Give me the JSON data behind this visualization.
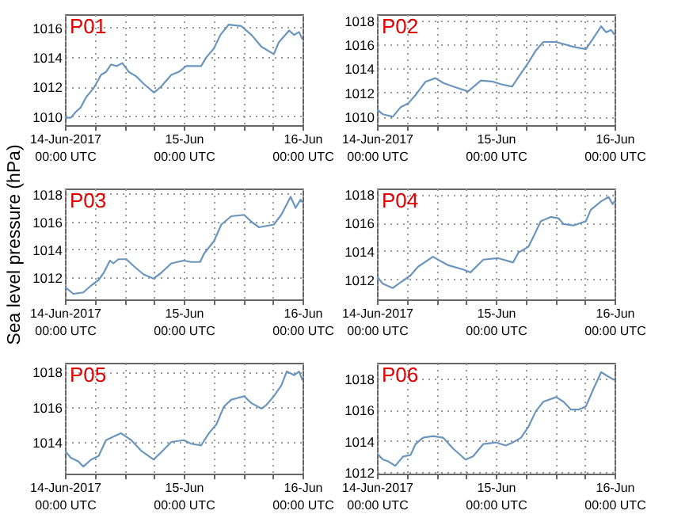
{
  "chart_data": [
    {
      "type": "line",
      "annotations": [
        "P01"
      ],
      "xlim": [
        "2017-06-14T00:00",
        "2017-06-16T00:00"
      ],
      "xticks": [
        {
          "value": "2017-06-14T00:00",
          "label": "14-Jun-2017\n00:00 UTC"
        },
        {
          "value": "2017-06-14T06:00",
          "label": null
        },
        {
          "value": "2017-06-14T12:00",
          "label": null
        },
        {
          "value": "2017-06-14T18:00",
          "label": null
        },
        {
          "value": "2017-06-15T00:00",
          "label": "15-Jun\n00:00 UTC"
        },
        {
          "value": "2017-06-15T06:00",
          "label": null
        },
        {
          "value": "2017-06-15T12:00",
          "label": null
        },
        {
          "value": "2017-06-15T18:00",
          "label": null
        },
        {
          "value": "2017-06-16T00:00",
          "label": "16-Jun\n00:00 UTC"
        }
      ],
      "ylim": [
        1009.4,
        1016.9
      ],
      "yticks": [
        1010,
        1012,
        1014,
        1016
      ],
      "grid": true,
      "x": [
        "2017-06-14T00:00",
        "2017-06-14T01:12",
        "2017-06-14T02:12",
        "2017-06-14T03:12",
        "2017-06-14T04:18",
        "2017-06-14T05:48",
        "2017-06-14T07:18",
        "2017-06-14T08:18",
        "2017-06-14T09:18",
        "2017-06-14T10:30",
        "2017-06-14T11:36",
        "2017-06-14T12:54",
        "2017-06-14T14:24",
        "2017-06-14T15:54",
        "2017-06-14T18:00",
        "2017-06-14T19:24",
        "2017-06-14T21:30",
        "2017-06-14T23:00",
        "2017-06-15T00:30",
        "2017-06-15T03:30",
        "2017-06-15T04:36",
        "2017-06-15T06:06",
        "2017-06-15T07:24",
        "2017-06-15T09:06",
        "2017-06-15T11:36",
        "2017-06-15T13:42",
        "2017-06-15T15:42",
        "2017-06-15T18:12",
        "2017-06-15T19:12",
        "2017-06-15T21:18",
        "2017-06-15T22:18",
        "2017-06-15T23:18",
        "2017-06-16T00:00"
      ],
      "series": [
        {
          "color": "#6a96be",
          "values": [
            1009.9,
            1009.9,
            1010.3,
            1010.6,
            1011.3,
            1011.9,
            1012.8,
            1013.0,
            1013.5,
            1013.4,
            1013.6,
            1013.0,
            1012.7,
            1012.2,
            1011.6,
            1012.0,
            1012.8,
            1013.0,
            1013.4,
            1013.4,
            1014.0,
            1014.6,
            1015.5,
            1016.2,
            1016.1,
            1015.5,
            1014.7,
            1014.2,
            1015.0,
            1015.8,
            1015.5,
            1015.7,
            1015.2
          ]
        }
      ]
    },
    {
      "type": "line",
      "annotations": [
        "P02"
      ],
      "xlim": [
        "2017-06-14T00:00",
        "2017-06-16T00:00"
      ],
      "xticks": [
        {
          "value": "2017-06-14T00:00",
          "label": "14-Jun-2017\n00:00 UTC"
        },
        {
          "value": "2017-06-14T06:00",
          "label": null
        },
        {
          "value": "2017-06-14T12:00",
          "label": null
        },
        {
          "value": "2017-06-14T18:00",
          "label": null
        },
        {
          "value": "2017-06-15T00:00",
          "label": "15-Jun\n00:00 UTC"
        },
        {
          "value": "2017-06-15T06:00",
          "label": null
        },
        {
          "value": "2017-06-15T12:00",
          "label": null
        },
        {
          "value": "2017-06-15T18:00",
          "label": null
        },
        {
          "value": "2017-06-16T00:00",
          "label": "16-Jun\n00:00 UTC"
        }
      ],
      "ylim": [
        1009.3,
        1018.5
      ],
      "yticks": [
        1010,
        1012,
        1014,
        1016,
        1018
      ],
      "grid": true,
      "x": [
        "2017-06-14T00:00",
        "2017-06-14T01:12",
        "2017-06-14T03:12",
        "2017-06-14T04:48",
        "2017-06-14T06:18",
        "2017-06-14T07:48",
        "2017-06-14T09:48",
        "2017-06-14T11:48",
        "2017-06-14T13:24",
        "2017-06-14T15:24",
        "2017-06-14T18:24",
        "2017-06-14T21:00",
        "2017-06-14T23:30",
        "2017-06-15T01:00",
        "2017-06-15T03:18",
        "2017-06-15T04:36",
        "2017-06-15T06:36",
        "2017-06-15T08:06",
        "2017-06-15T09:36",
        "2017-06-15T12:12",
        "2017-06-15T15:42",
        "2017-06-15T18:12",
        "2017-06-15T19:42",
        "2017-06-15T21:18",
        "2017-06-15T22:18",
        "2017-06-15T23:18",
        "2017-06-16T00:00"
      ],
      "series": [
        {
          "color": "#6a96be",
          "values": [
            1010.6,
            1010.2,
            1010.0,
            1010.8,
            1011.1,
            1011.8,
            1012.9,
            1013.2,
            1012.8,
            1012.5,
            1012.1,
            1013.0,
            1012.9,
            1012.7,
            1012.5,
            1013.3,
            1014.5,
            1015.5,
            1016.2,
            1016.2,
            1015.8,
            1015.6,
            1016.5,
            1017.5,
            1017.0,
            1017.2,
            1016.8
          ]
        }
      ]
    },
    {
      "type": "line",
      "annotations": [
        "P03"
      ],
      "ylabel": "Sea level pressure (hPa)",
      "xlim": [
        "2017-06-14T00:00",
        "2017-06-16T00:00"
      ],
      "xticks": [
        {
          "value": "2017-06-14T00:00",
          "label": "14-Jun-2017\n00:00 UTC"
        },
        {
          "value": "2017-06-14T06:00",
          "label": null
        },
        {
          "value": "2017-06-14T12:00",
          "label": null
        },
        {
          "value": "2017-06-14T18:00",
          "label": null
        },
        {
          "value": "2017-06-15T00:00",
          "label": "15-Jun\n00:00 UTC"
        },
        {
          "value": "2017-06-15T06:00",
          "label": null
        },
        {
          "value": "2017-06-15T12:00",
          "label": null
        },
        {
          "value": "2017-06-15T18:00",
          "label": null
        },
        {
          "value": "2017-06-16T00:00",
          "label": "16-Jun\n00:00 UTC"
        }
      ],
      "ylim": [
        1010.4,
        1018.4
      ],
      "yticks": [
        1012,
        1014,
        1016,
        1018
      ],
      "grid": true,
      "x": [
        "2017-06-14T00:00",
        "2017-06-14T01:42",
        "2017-06-14T03:42",
        "2017-06-14T05:18",
        "2017-06-14T06:48",
        "2017-06-14T07:48",
        "2017-06-14T09:06",
        "2017-06-14T09:48",
        "2017-06-14T10:48",
        "2017-06-14T12:24",
        "2017-06-14T13:54",
        "2017-06-14T15:54",
        "2017-06-14T17:54",
        "2017-06-14T19:24",
        "2017-06-14T21:30",
        "2017-06-15T00:00",
        "2017-06-15T01:30",
        "2017-06-15T03:18",
        "2017-06-15T04:06",
        "2017-06-15T06:06",
        "2017-06-15T07:36",
        "2017-06-15T09:36",
        "2017-06-15T12:12",
        "2017-06-15T13:42",
        "2017-06-15T15:12",
        "2017-06-15T18:12",
        "2017-06-15T19:42",
        "2017-06-15T21:36",
        "2017-06-15T22:36",
        "2017-06-15T23:36",
        "2017-06-16T00:00"
      ],
      "series": [
        {
          "color": "#6a96be",
          "values": [
            1011.3,
            1010.8,
            1010.9,
            1011.4,
            1011.8,
            1012.3,
            1013.2,
            1013.0,
            1013.3,
            1013.3,
            1012.8,
            1012.2,
            1011.9,
            1012.3,
            1013.0,
            1013.2,
            1013.1,
            1013.1,
            1013.7,
            1014.6,
            1015.8,
            1016.4,
            1016.5,
            1016.0,
            1015.6,
            1015.8,
            1016.5,
            1017.8,
            1017.0,
            1017.6,
            1017.4
          ]
        }
      ]
    },
    {
      "type": "line",
      "annotations": [
        "P04"
      ],
      "xlim": [
        "2017-06-14T00:00",
        "2017-06-16T00:00"
      ],
      "xticks": [
        {
          "value": "2017-06-14T00:00",
          "label": "14-Jun-2017\n00:00 UTC"
        },
        {
          "value": "2017-06-14T06:00",
          "label": null
        },
        {
          "value": "2017-06-14T12:00",
          "label": null
        },
        {
          "value": "2017-06-14T18:00",
          "label": null
        },
        {
          "value": "2017-06-15T00:00",
          "label": "15-Jun\n00:00 UTC"
        },
        {
          "value": "2017-06-15T06:00",
          "label": null
        },
        {
          "value": "2017-06-15T12:00",
          "label": null
        },
        {
          "value": "2017-06-15T18:00",
          "label": null
        },
        {
          "value": "2017-06-16T00:00",
          "label": "16-Jun\n00:00 UTC"
        }
      ],
      "ylim": [
        1010.6,
        1018.4
      ],
      "yticks": [
        1012,
        1014,
        1016,
        1018
      ],
      "grid": true,
      "x": [
        "2017-06-14T00:00",
        "2017-06-14T01:12",
        "2017-06-14T03:12",
        "2017-06-14T04:48",
        "2017-06-14T06:48",
        "2017-06-14T08:18",
        "2017-06-14T11:18",
        "2017-06-14T14:24",
        "2017-06-14T17:24",
        "2017-06-14T18:54",
        "2017-06-14T21:30",
        "2017-06-15T00:30",
        "2017-06-15T03:30",
        "2017-06-15T04:36",
        "2017-06-15T06:36",
        "2017-06-15T07:36",
        "2017-06-15T09:06",
        "2017-06-15T11:06",
        "2017-06-15T12:42",
        "2017-06-15T13:42",
        "2017-06-15T15:42",
        "2017-06-15T18:12",
        "2017-06-15T19:12",
        "2017-06-15T21:18",
        "2017-06-15T22:48",
        "2017-06-15T23:36",
        "2017-06-16T00:00"
      ],
      "series": [
        {
          "color": "#6a96be",
          "values": [
            1012.2,
            1011.7,
            1011.4,
            1011.8,
            1012.3,
            1012.9,
            1013.6,
            1013.0,
            1012.7,
            1012.5,
            1013.4,
            1013.5,
            1013.2,
            1013.9,
            1014.3,
            1015.0,
            1016.1,
            1016.4,
            1016.3,
            1015.9,
            1015.8,
            1016.1,
            1016.9,
            1017.5,
            1017.8,
            1017.3,
            1017.5
          ]
        }
      ]
    },
    {
      "type": "line",
      "annotations": [
        "P05"
      ],
      "xlim": [
        "2017-06-14T00:00",
        "2017-06-16T00:00"
      ],
      "xticks": [
        {
          "value": "2017-06-14T00:00",
          "label": "14-Jun-2017\n00:00 UTC"
        },
        {
          "value": "2017-06-14T06:00",
          "label": null
        },
        {
          "value": "2017-06-14T12:00",
          "label": null
        },
        {
          "value": "2017-06-14T18:00",
          "label": null
        },
        {
          "value": "2017-06-15T00:00",
          "label": "15-Jun\n00:00 UTC"
        },
        {
          "value": "2017-06-15T06:00",
          "label": null
        },
        {
          "value": "2017-06-15T12:00",
          "label": null
        },
        {
          "value": "2017-06-15T18:00",
          "label": null
        },
        {
          "value": "2017-06-16T00:00",
          "label": "16-Jun\n00:00 UTC"
        }
      ],
      "ylim": [
        1012.2,
        1018.5
      ],
      "yticks": [
        1014,
        1016,
        1018
      ],
      "grid": true,
      "x": [
        "2017-06-14T00:00",
        "2017-06-14T01:12",
        "2017-06-14T02:42",
        "2017-06-14T03:42",
        "2017-06-14T05:18",
        "2017-06-14T06:48",
        "2017-06-14T08:18",
        "2017-06-14T09:48",
        "2017-06-14T11:18",
        "2017-06-14T13:24",
        "2017-06-14T15:24",
        "2017-06-14T17:54",
        "2017-06-14T19:24",
        "2017-06-14T21:30",
        "2017-06-15T00:00",
        "2017-06-15T01:30",
        "2017-06-15T03:30",
        "2017-06-15T05:06",
        "2017-06-15T06:36",
        "2017-06-15T08:06",
        "2017-06-15T09:36",
        "2017-06-15T12:12",
        "2017-06-15T13:42",
        "2017-06-15T15:42",
        "2017-06-15T16:42",
        "2017-06-15T18:12",
        "2017-06-15T19:42",
        "2017-06-15T20:48",
        "2017-06-15T22:18",
        "2017-06-15T23:18",
        "2017-06-16T00:00"
      ],
      "series": [
        {
          "color": "#6a96be",
          "values": [
            1013.5,
            1013.1,
            1012.9,
            1012.6,
            1013.0,
            1013.2,
            1014.1,
            1014.3,
            1014.5,
            1014.1,
            1013.5,
            1013.0,
            1013.4,
            1014.0,
            1014.1,
            1013.9,
            1013.8,
            1014.5,
            1015.0,
            1016.0,
            1016.4,
            1016.6,
            1016.2,
            1015.9,
            1016.1,
            1016.6,
            1017.2,
            1018.0,
            1017.8,
            1018.0,
            1017.5
          ]
        }
      ]
    },
    {
      "type": "line",
      "annotations": [
        "P06"
      ],
      "xlim": [
        "2017-06-14T00:00",
        "2017-06-16T00:00"
      ],
      "xticks": [
        {
          "value": "2017-06-14T00:00",
          "label": "14-Jun-2017\n00:00 UTC"
        },
        {
          "value": "2017-06-14T06:00",
          "label": null
        },
        {
          "value": "2017-06-14T12:00",
          "label": null
        },
        {
          "value": "2017-06-14T18:00",
          "label": null
        },
        {
          "value": "2017-06-15T00:00",
          "label": "15-Jun\n00:00 UTC"
        },
        {
          "value": "2017-06-15T06:00",
          "label": null
        },
        {
          "value": "2017-06-15T12:00",
          "label": null
        },
        {
          "value": "2017-06-15T18:00",
          "label": null
        },
        {
          "value": "2017-06-16T00:00",
          "label": "16-Jun\n00:00 UTC"
        }
      ],
      "ylim": [
        1011.9,
        1019.0
      ],
      "yticks": [
        1012,
        1014,
        1016,
        1018
      ],
      "grid": true,
      "x": [
        "2017-06-14T00:00",
        "2017-06-14T01:12",
        "2017-06-14T02:12",
        "2017-06-14T03:42",
        "2017-06-14T05:18",
        "2017-06-14T06:48",
        "2017-06-14T07:48",
        "2017-06-14T09:18",
        "2017-06-14T11:18",
        "2017-06-14T13:24",
        "2017-06-14T15:24",
        "2017-06-14T17:54",
        "2017-06-14T19:24",
        "2017-06-14T21:30",
        "2017-06-15T00:00",
        "2017-06-15T02:00",
        "2017-06-15T03:30",
        "2017-06-15T05:06",
        "2017-06-15T06:36",
        "2017-06-15T08:06",
        "2017-06-15T09:36",
        "2017-06-15T12:12",
        "2017-06-15T13:42",
        "2017-06-15T15:12",
        "2017-06-15T16:42",
        "2017-06-15T18:12",
        "2017-06-15T19:42",
        "2017-06-15T21:18",
        "2017-06-15T22:48",
        "2017-06-16T00:00"
      ],
      "series": [
        {
          "color": "#6a96be",
          "values": [
            1013.2,
            1012.8,
            1012.7,
            1012.4,
            1013.0,
            1013.1,
            1013.8,
            1014.2,
            1014.3,
            1014.2,
            1013.5,
            1012.8,
            1013.0,
            1013.8,
            1013.9,
            1013.7,
            1013.9,
            1014.2,
            1014.9,
            1015.9,
            1016.5,
            1016.8,
            1016.5,
            1016.0,
            1016.0,
            1016.2,
            1017.3,
            1018.4,
            1018.1,
            1017.9
          ]
        }
      ]
    }
  ]
}
